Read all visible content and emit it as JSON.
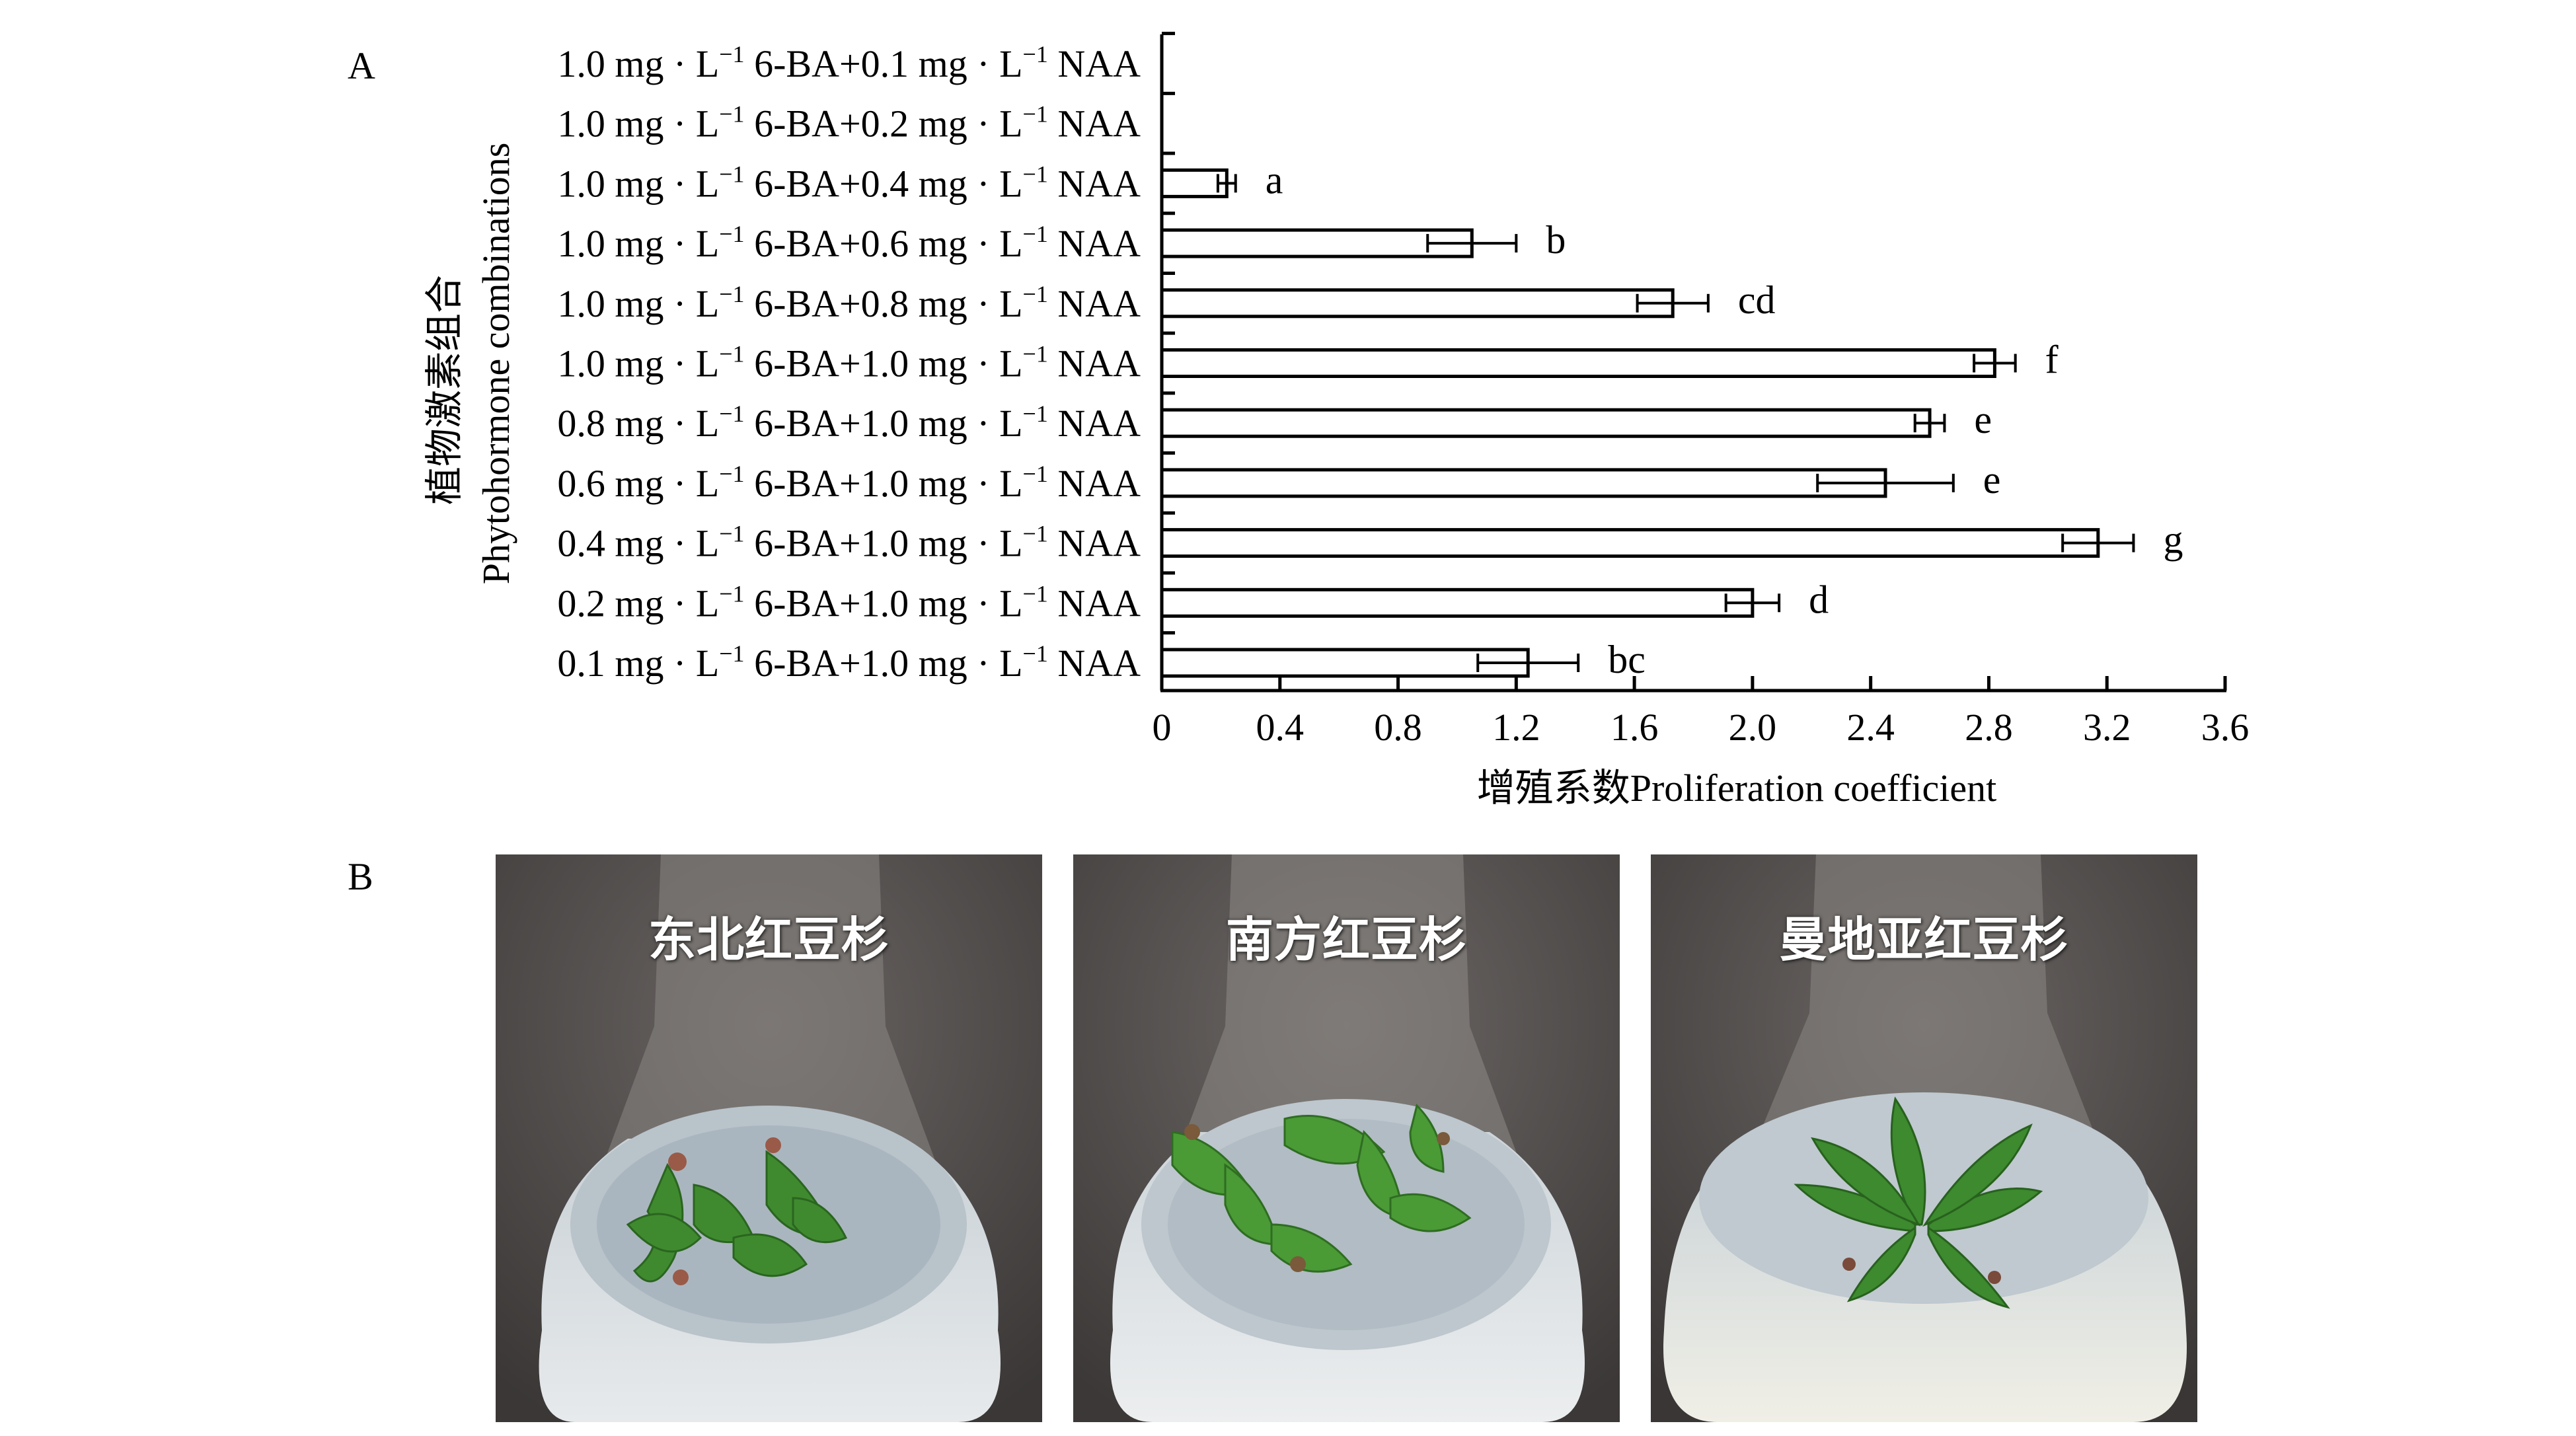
{
  "panels": {
    "a": "A",
    "b": "B"
  },
  "chart_data": {
    "type": "bar",
    "orientation": "horizontal",
    "xlabel": "增殖系数Proliferation coefficient",
    "ylabel_cn": "植物激素组合",
    "ylabel_en": "Phytohormone combinations",
    "xlim": [
      0,
      3.6
    ],
    "xticks": [
      "0",
      "0.4",
      "0.8",
      "1.2",
      "1.6",
      "2.0",
      "2.4",
      "2.8",
      "3.2",
      "3.6"
    ],
    "grid": false,
    "categories": [
      {
        "conc1": "1.0",
        "conc2": "0.1"
      },
      {
        "conc1": "1.0",
        "conc2": "0.2"
      },
      {
        "conc1": "1.0",
        "conc2": "0.4"
      },
      {
        "conc1": "1.0",
        "conc2": "0.6"
      },
      {
        "conc1": "1.0",
        "conc2": "0.8"
      },
      {
        "conc1": "1.0",
        "conc2": "1.0"
      },
      {
        "conc1": "0.8",
        "conc2": "1.0"
      },
      {
        "conc1": "0.6",
        "conc2": "1.0"
      },
      {
        "conc1": "0.4",
        "conc2": "1.0"
      },
      {
        "conc1": "0.2",
        "conc2": "1.0"
      },
      {
        "conc1": "0.1",
        "conc2": "1.0"
      }
    ],
    "label_parts": {
      "unit": "mg",
      "unit_l": "L",
      "exp": "−1",
      "hormone1": "6-BA",
      "hormone2": "NAA"
    },
    "values": [
      0,
      0,
      0.22,
      1.05,
      1.73,
      2.82,
      2.6,
      2.45,
      3.17,
      2.0,
      1.24
    ],
    "errors": [
      0,
      0,
      0.03,
      0.15,
      0.12,
      0.07,
      0.05,
      0.23,
      0.12,
      0.09,
      0.17
    ],
    "significance": [
      "",
      "",
      "a",
      "b",
      "cd",
      "f",
      "e",
      "e",
      "g",
      "d",
      "bc"
    ]
  },
  "photos": [
    {
      "caption": "东北红豆杉"
    },
    {
      "caption": "南方红豆杉"
    },
    {
      "caption": "曼地亚红豆杉"
    }
  ]
}
